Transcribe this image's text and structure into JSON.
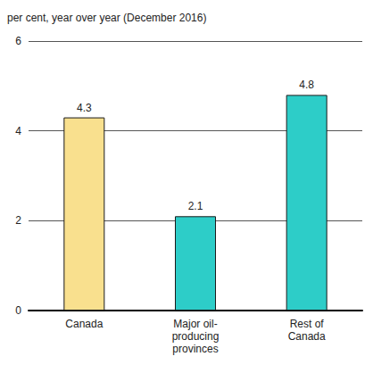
{
  "chart_data": {
    "type": "bar",
    "ylabel": "per cent, year over year (December 2016)",
    "categories": [
      "Canada",
      "Major oil-producing provinces",
      "Rest of Canada"
    ],
    "values": [
      4.3,
      2.1,
      4.8
    ],
    "colors": [
      "#f9e08e",
      "#2dcdc8",
      "#2dcdc8"
    ],
    "ylim": [
      0,
      6
    ],
    "yticks": [
      0,
      2,
      4,
      6
    ],
    "grid": true,
    "data_labels": true
  }
}
